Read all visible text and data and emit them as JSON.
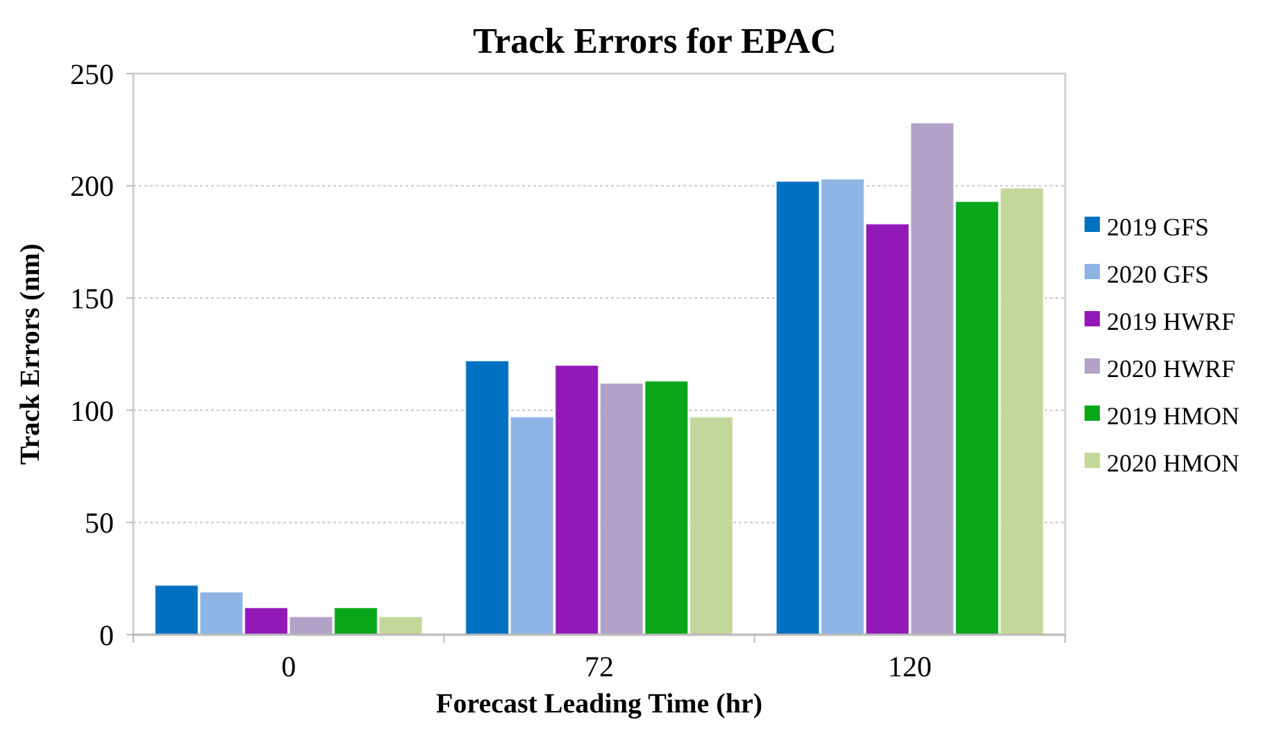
{
  "chart_data": {
    "type": "bar",
    "title": "Track Errors for EPAC",
    "xlabel": "Forecast Leading Time (hr)",
    "ylabel": "Track Errors (nm)",
    "categories": [
      "0",
      "72",
      "120"
    ],
    "series": [
      {
        "name": "2019 GFS",
        "color": "#0070c0",
        "values": [
          22,
          122,
          202
        ]
      },
      {
        "name": "2020 GFS",
        "color": "#8eb4e3",
        "values": [
          19,
          97,
          203
        ]
      },
      {
        "name": "2019 HWRF",
        "color": "#9218b8",
        "values": [
          12,
          120,
          183
        ]
      },
      {
        "name": "2020 HWRF",
        "color": "#b3a2c7",
        "values": [
          8,
          112,
          228
        ]
      },
      {
        "name": "2019 HMON",
        "color": "#0aa61a",
        "values": [
          12,
          113,
          193
        ]
      },
      {
        "name": "2020 HMON",
        "color": "#c4d79b",
        "values": [
          8,
          97,
          199
        ]
      }
    ],
    "ylim": [
      0,
      250
    ],
    "yticks": [
      0,
      50,
      100,
      150,
      200,
      250
    ],
    "grid": "y",
    "legend": "right"
  }
}
